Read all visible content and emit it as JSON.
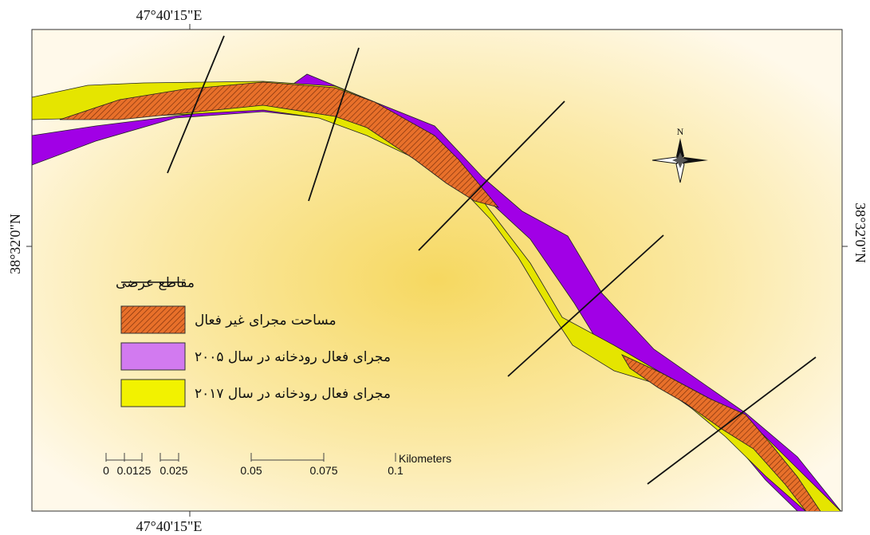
{
  "coordinates": {
    "top_longitude": "47°40'15\"E",
    "bottom_longitude": "47°40'15\"E",
    "left_latitude": "38°32'0\"N",
    "right_latitude": "38°32'0\"N"
  },
  "north_arrow": {
    "label": "N",
    "icon": "compass-rose-icon"
  },
  "legend": {
    "items": [
      {
        "label": "مقاطع عرضی",
        "symbol": "line",
        "color": "#111111"
      },
      {
        "label": "مساحت مجرای غیر فعال",
        "symbol": "hatched",
        "color": "#e8702a"
      },
      {
        "label": "مجرای فعال رودخانه در سال ۲۰۰۵",
        "symbol": "fill",
        "color": "#a100e6"
      },
      {
        "label": "مجرای فعال رودخانه در سال ۲۰۱۷",
        "symbol": "fill",
        "color": "#e5e500"
      }
    ]
  },
  "scale_bar": {
    "unit": "Kilometers",
    "ticks": [
      "0",
      "0.0125",
      "0.025",
      "0.05",
      "0.075",
      "0.1"
    ]
  },
  "colors": {
    "background_center": "#f7dd72",
    "background_edge": "#fff8e6",
    "channel_2005": "#a100e6",
    "channel_2017": "#e5e500",
    "inactive": "#e8702a"
  }
}
